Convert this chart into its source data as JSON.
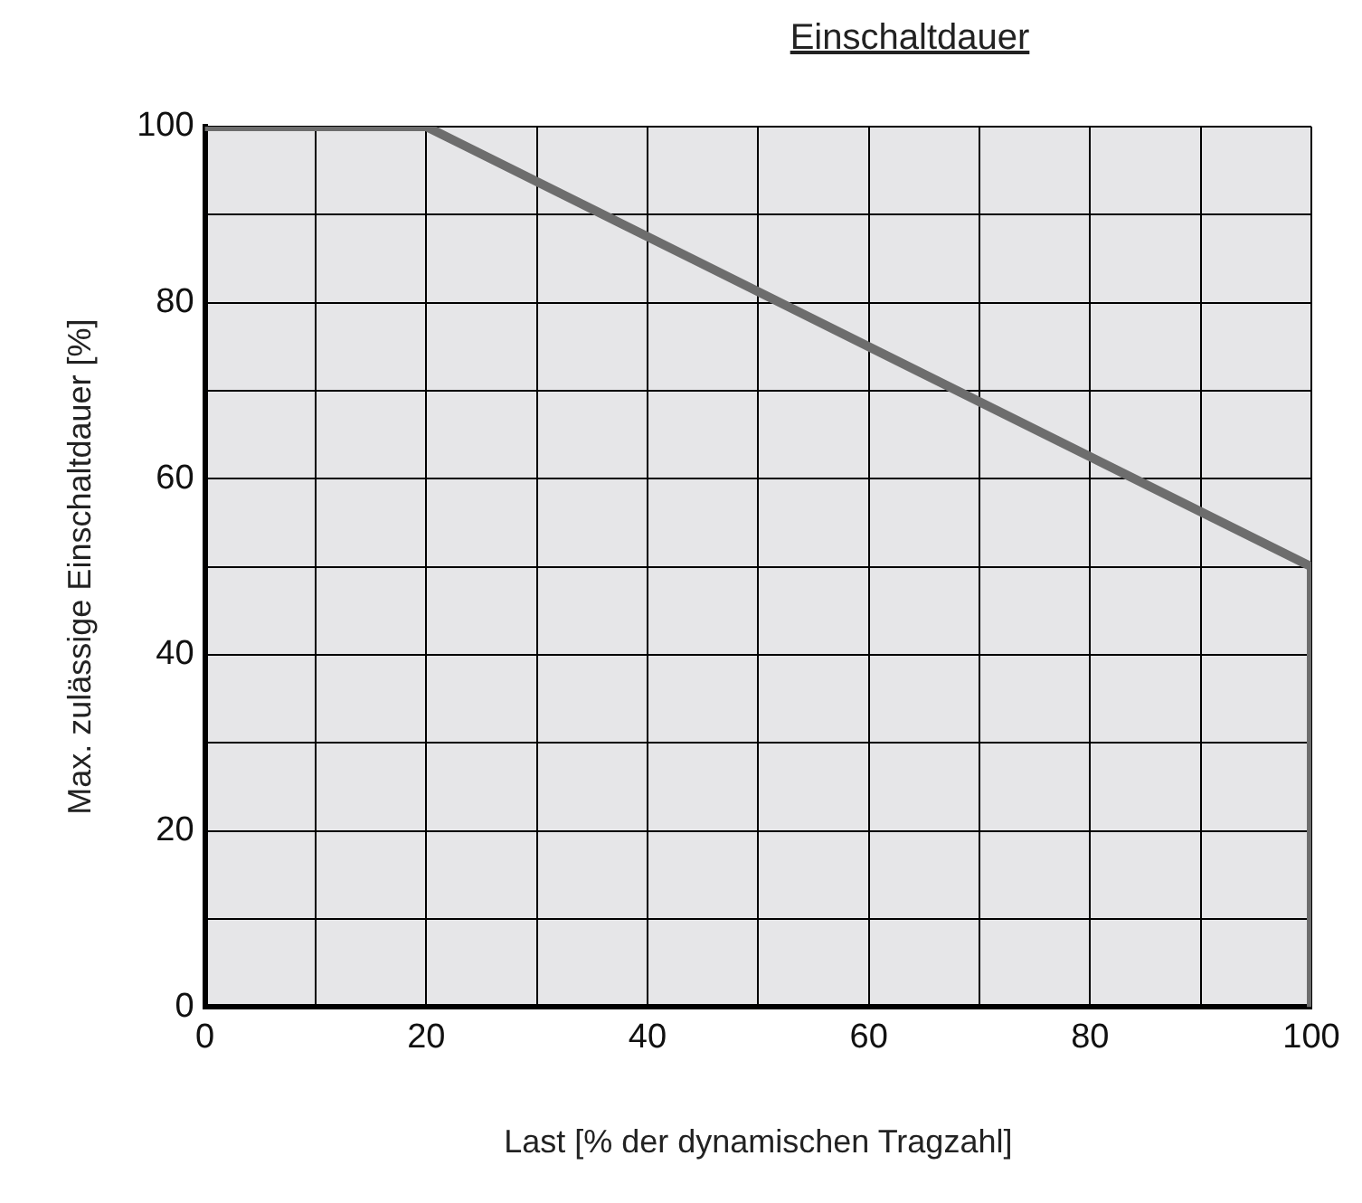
{
  "chart_data": {
    "type": "line",
    "title": "Einschaltdauer",
    "xlabel": "Last [% der dynamischen Tragzahl]",
    "ylabel": "Max. zulässige Einschaltdauer [%]",
    "x": [
      0,
      20,
      100,
      100
    ],
    "series": [
      {
        "color": "#6d6d6d",
        "values": [
          100,
          100,
          50,
          0
        ]
      }
    ],
    "xlim": [
      0,
      100
    ],
    "ylim": [
      0,
      100
    ],
    "xticks": [
      0,
      {
        "value": 10,
        "label": null
      },
      20,
      {
        "value": 30,
        "label": null
      },
      40,
      {
        "value": 50,
        "label": null
      },
      60,
      {
        "value": 70,
        "label": null
      },
      80,
      {
        "value": 90,
        "label": null
      },
      100
    ],
    "yticks": [
      0,
      {
        "value": 10,
        "label": null
      },
      20,
      {
        "value": 30,
        "label": null
      },
      40,
      {
        "value": 50,
        "label": null
      },
      60,
      {
        "value": 70,
        "label": null
      },
      80,
      {
        "value": 90,
        "label": null
      },
      100
    ],
    "grid": true,
    "legend": false,
    "marker": "none",
    "line_style": "solid"
  }
}
